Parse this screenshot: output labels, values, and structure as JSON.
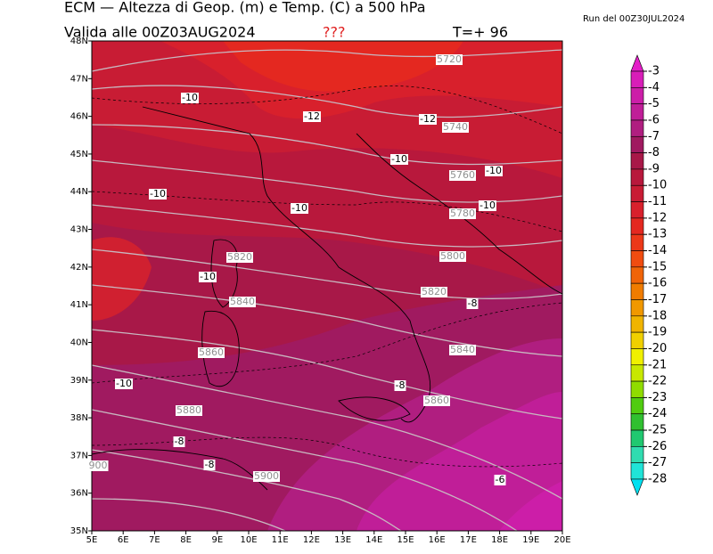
{
  "header": {
    "title": "ECM — Altezza di Geop. (m) e Temp. (C) a 500 hPa",
    "valid": "Valida alle 00Z03AUG2024",
    "marker": "???",
    "step": "T=+ 96",
    "run": "Run del 00Z30JUL2024"
  },
  "map": {
    "lat_labels": [
      "48N",
      "47N",
      "46N",
      "45N",
      "44N",
      "43N",
      "42N",
      "41N",
      "40N",
      "39N",
      "38N",
      "37N",
      "36N",
      "35N"
    ],
    "lon_labels": [
      "5E",
      "6E",
      "7E",
      "8E",
      "9E",
      "10E",
      "11E",
      "12E",
      "13E",
      "14E",
      "15E",
      "16E",
      "17E",
      "18E",
      "19E",
      "20E"
    ],
    "temperature_labels": [
      -10,
      -12,
      -12,
      -10,
      -10,
      -10,
      -10,
      -10,
      -10,
      -8,
      -10,
      -8,
      -8,
      -8,
      -6
    ],
    "height_labels": [
      5720,
      5740,
      5760,
      5780,
      5820,
      5800,
      5840,
      5820,
      5860,
      5840,
      5860,
      5880,
      5900,
      900
    ]
  },
  "colorbar": {
    "labels": [
      -3,
      -4,
      -5,
      -6,
      -7,
      -8,
      -9,
      -10,
      -11,
      -12,
      -13,
      -14,
      -15,
      -16,
      -17,
      -18,
      -19,
      -20,
      -21,
      -22,
      -23,
      -24,
      -25,
      -26,
      -27,
      -28
    ],
    "colors": [
      "#e41ec8",
      "#d81eb8",
      "#cc1ea8",
      "#c01e98",
      "#b01e80",
      "#a01a60",
      "#a81848",
      "#b8183c",
      "#c81c34",
      "#d8202c",
      "#e42820",
      "#ec3818",
      "#f04c10",
      "#f06408",
      "#f07c00",
      "#f09800",
      "#f0b400",
      "#f0d000",
      "#f0f000",
      "#c8e800",
      "#90dc00",
      "#50cc10",
      "#30c030",
      "#20c870",
      "#30dcb0",
      "#20e4d8",
      "#00e0f0"
    ]
  }
}
